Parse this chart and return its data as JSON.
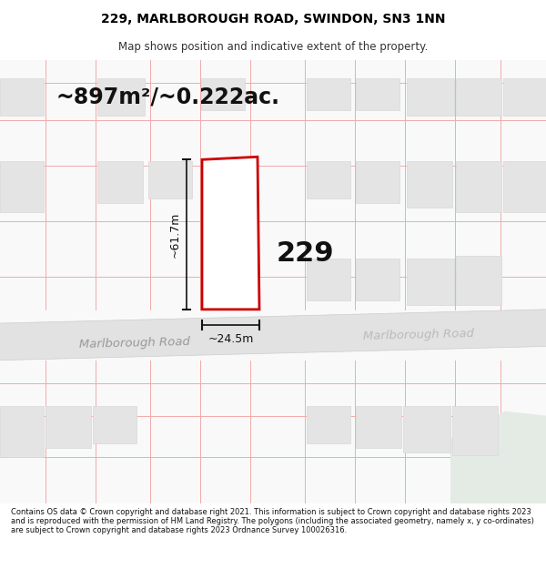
{
  "title": "229, MARLBOROUGH ROAD, SWINDON, SN3 1NN",
  "subtitle": "Map shows position and indicative extent of the property.",
  "area_label": "~897m²/~0.222ac.",
  "plot_number": "229",
  "dim_height": "~61.7m",
  "dim_width": "~24.5m",
  "road_label1": "Marlborough Road",
  "road_label2": "Marlborough Road",
  "footer": "Contains OS data © Crown copyright and database right 2021. This information is subject to Crown copyright and database rights 2023 and is reproduced with the permission of HM Land Registry. The polygons (including the associated geometry, namely x, y co-ordinates) are subject to Crown copyright and database rights 2023 Ordnance Survey 100026316.",
  "bg_color": "#ffffff",
  "map_bg": "#f8f8f8",
  "road_fill": "#e2e2e2",
  "plot_fill": "#ffffff",
  "plot_edge": "#cc0000",
  "grid_line_color": "#f2aaaa",
  "building_fill": "#e4e4e4",
  "building_edge": "#d8d8d8",
  "green_fill": "#e4ebe4",
  "title_fontsize": 10,
  "subtitle_fontsize": 8.5,
  "area_fontsize": 18,
  "footer_fontsize": 6.0
}
